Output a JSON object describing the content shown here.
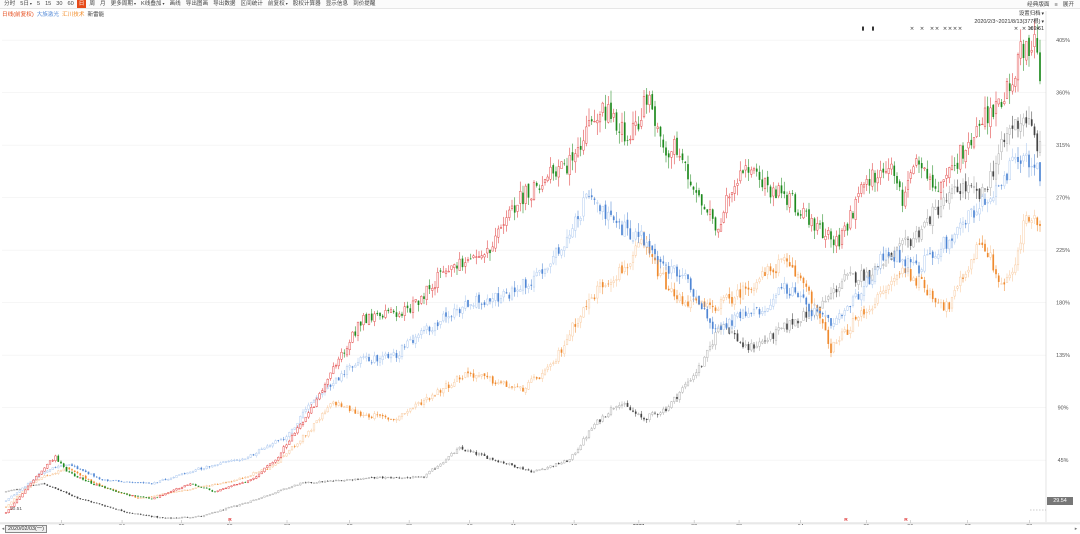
{
  "toolbar": {
    "items": [
      {
        "label": "分时",
        "active": false,
        "caret": false
      },
      {
        "label": "5日",
        "active": false,
        "caret": true
      },
      {
        "label": "5",
        "active": false,
        "caret": false
      },
      {
        "label": "15",
        "active": false,
        "caret": false
      },
      {
        "label": "30",
        "active": false,
        "caret": false
      },
      {
        "label": "60",
        "active": false,
        "caret": false
      },
      {
        "label": "日",
        "active": true,
        "caret": false
      },
      {
        "label": "周",
        "active": false,
        "caret": false
      },
      {
        "label": "月",
        "active": false,
        "caret": false
      },
      {
        "label": "更多周期",
        "active": false,
        "caret": true
      },
      {
        "label": "K线叠加",
        "active": false,
        "caret": true
      },
      {
        "label": "画线",
        "active": false,
        "caret": false
      },
      {
        "label": "导出图画",
        "active": false,
        "caret": false
      },
      {
        "label": "导出数据",
        "active": false,
        "caret": false
      },
      {
        "label": "区间统计",
        "active": false,
        "caret": false
      },
      {
        "label": "前复权",
        "active": false,
        "caret": true
      },
      {
        "label": "股权计算器",
        "active": false,
        "caret": false
      },
      {
        "label": "显示信息",
        "active": false,
        "caret": false
      },
      {
        "label": "到价提醒",
        "active": false,
        "caret": false
      }
    ],
    "right": [
      {
        "label": "经典版面",
        "caret": false
      },
      {
        "label": "展开",
        "caret": false
      }
    ],
    "right_prefix": "≡"
  },
  "legend": [
    {
      "label": "日线(前复权)",
      "color": "#e64a19"
    },
    {
      "label": "大族激光",
      "color": "#5b8fd9"
    },
    {
      "label": "汇川技术",
      "color": "#f28c28"
    },
    {
      "label": "新雷能",
      "color": "#444444"
    }
  ],
  "range_box": {
    "line1": "设置归档",
    "line2": "2020/2/3~2021/8/13(377根)",
    "line3": "169.61"
  },
  "price_box": "29.54",
  "date_box": "2020/02/03(一)",
  "scroll_left": "◂",
  "scroll_right": "▸",
  "markers": {
    "top": "×",
    "small": "▮",
    "event": "R"
  },
  "chart_data": {
    "type": "candlestick-overlay",
    "x_start": "2020-02-03",
    "x_end": "2021-08-13",
    "bars": 377,
    "y_unit": "%",
    "yticks": [
      45,
      90,
      135,
      180,
      225,
      270,
      315,
      360,
      405
    ],
    "ytick_labels": [
      "45%",
      "90%",
      "135%",
      "180%",
      "225%",
      "270%",
      "315%",
      "360%",
      "405%"
    ],
    "ylim": [
      -8,
      430
    ],
    "xticks": [
      {
        "label": "03",
        "pos": 0.057
      },
      {
        "label": "04",
        "pos": 0.115
      },
      {
        "label": "05",
        "pos": 0.172
      },
      {
        "label": "06",
        "pos": 0.218
      },
      {
        "label": "07",
        "pos": 0.273
      },
      {
        "label": "08",
        "pos": 0.333
      },
      {
        "label": "09",
        "pos": 0.39
      },
      {
        "label": "10",
        "pos": 0.448
      },
      {
        "label": "11",
        "pos": 0.49
      },
      {
        "label": "12",
        "pos": 0.548
      },
      {
        "label": "2021",
        "pos": 0.61
      },
      {
        "label": "02",
        "pos": 0.663
      },
      {
        "label": "03",
        "pos": 0.706
      },
      {
        "label": "04",
        "pos": 0.765
      },
      {
        "label": "05",
        "pos": 0.828
      },
      {
        "label": "06",
        "pos": 0.87
      },
      {
        "label": "07",
        "pos": 0.925
      },
      {
        "label": "08",
        "pos": 0.984
      }
    ],
    "series": [
      {
        "name": "日线(前复权)",
        "style": "candles",
        "up_color": "#e03a3a",
        "down_color": "#1e8a1e",
        "anchors": [
          [
            0,
            0
          ],
          [
            12,
            30
          ],
          [
            20,
            48
          ],
          [
            25,
            35
          ],
          [
            35,
            25
          ],
          [
            50,
            15
          ],
          [
            60,
            12
          ],
          [
            75,
            25
          ],
          [
            85,
            18
          ],
          [
            100,
            28
          ],
          [
            110,
            45
          ],
          [
            125,
            90
          ],
          [
            145,
            165
          ],
          [
            165,
            175
          ],
          [
            180,
            210
          ],
          [
            195,
            220
          ],
          [
            210,
            270
          ],
          [
            230,
            300
          ],
          [
            238,
            330
          ],
          [
            245,
            345
          ],
          [
            255,
            320
          ],
          [
            262,
            360
          ],
          [
            268,
            315
          ],
          [
            275,
            310
          ],
          [
            285,
            260
          ],
          [
            290,
            245
          ],
          [
            300,
            295
          ],
          [
            310,
            280
          ],
          [
            320,
            270
          ],
          [
            330,
            245
          ],
          [
            340,
            230
          ],
          [
            350,
            280
          ],
          [
            360,
            300
          ],
          [
            366,
            265
          ],
          [
            372,
            300
          ],
          [
            382,
            275
          ],
          [
            390,
            310
          ],
          [
            400,
            340
          ],
          [
            408,
            360
          ],
          [
            415,
            400
          ],
          [
            420,
            405
          ],
          [
            422,
            360
          ]
        ]
      },
      {
        "name": "大族激光",
        "style": "candles",
        "up_color": "#a9c6ee",
        "down_color": "#4f86d4",
        "anchors": [
          [
            0,
            10
          ],
          [
            15,
            35
          ],
          [
            25,
            42
          ],
          [
            40,
            28
          ],
          [
            60,
            25
          ],
          [
            80,
            38
          ],
          [
            100,
            48
          ],
          [
            115,
            65
          ],
          [
            130,
            105
          ],
          [
            145,
            130
          ],
          [
            160,
            135
          ],
          [
            175,
            160
          ],
          [
            190,
            180
          ],
          [
            205,
            185
          ],
          [
            220,
            205
          ],
          [
            235,
            250
          ],
          [
            240,
            280
          ],
          [
            248,
            250
          ],
          [
            262,
            235
          ],
          [
            268,
            215
          ],
          [
            280,
            200
          ],
          [
            292,
            155
          ],
          [
            302,
            170
          ],
          [
            312,
            175
          ],
          [
            320,
            195
          ],
          [
            330,
            175
          ],
          [
            340,
            160
          ],
          [
            352,
            190
          ],
          [
            362,
            225
          ],
          [
            375,
            210
          ],
          [
            388,
            235
          ],
          [
            398,
            260
          ],
          [
            408,
            275
          ],
          [
            414,
            300
          ],
          [
            420,
            305
          ],
          [
            425,
            290
          ]
        ]
      },
      {
        "name": "汇川技术",
        "style": "candles",
        "up_color": "#f8c79a",
        "down_color": "#ef8a2e",
        "anchors": [
          [
            0,
            5
          ],
          [
            12,
            28
          ],
          [
            25,
            38
          ],
          [
            40,
            22
          ],
          [
            55,
            12
          ],
          [
            70,
            18
          ],
          [
            95,
            28
          ],
          [
            110,
            40
          ],
          [
            125,
            70
          ],
          [
            135,
            95
          ],
          [
            145,
            85
          ],
          [
            160,
            80
          ],
          [
            175,
            100
          ],
          [
            190,
            120
          ],
          [
            205,
            110
          ],
          [
            212,
            105
          ],
          [
            225,
            125
          ],
          [
            235,
            165
          ],
          [
            245,
            195
          ],
          [
            255,
            210
          ],
          [
            262,
            230
          ],
          [
            268,
            210
          ],
          [
            275,
            185
          ],
          [
            290,
            175
          ],
          [
            300,
            185
          ],
          [
            310,
            200
          ],
          [
            320,
            215
          ],
          [
            330,
            195
          ],
          [
            340,
            140
          ],
          [
            350,
            165
          ],
          [
            360,
            185
          ],
          [
            370,
            210
          ],
          [
            380,
            190
          ],
          [
            388,
            175
          ],
          [
            395,
            205
          ],
          [
            402,
            235
          ],
          [
            410,
            195
          ],
          [
            416,
            210
          ],
          [
            420,
            255
          ],
          [
            426,
            245
          ]
        ]
      },
      {
        "name": "新雷能",
        "style": "candles",
        "up_color": "#aaaaaa",
        "down_color": "#444444",
        "anchors": [
          [
            0,
            18
          ],
          [
            15,
            25
          ],
          [
            30,
            12
          ],
          [
            50,
            0
          ],
          [
            65,
            -5
          ],
          [
            80,
            -3
          ],
          [
            100,
            10
          ],
          [
            120,
            25
          ],
          [
            150,
            30
          ],
          [
            170,
            30
          ],
          [
            185,
            55
          ],
          [
            200,
            45
          ],
          [
            215,
            35
          ],
          [
            230,
            45
          ],
          [
            240,
            75
          ],
          [
            250,
            95
          ],
          [
            260,
            80
          ],
          [
            270,
            90
          ],
          [
            285,
            130
          ],
          [
            292,
            165
          ],
          [
            302,
            140
          ],
          [
            312,
            150
          ],
          [
            322,
            165
          ],
          [
            332,
            175
          ],
          [
            342,
            200
          ],
          [
            352,
            205
          ],
          [
            362,
            220
          ],
          [
            370,
            235
          ],
          [
            380,
            260
          ],
          [
            390,
            280
          ],
          [
            398,
            270
          ],
          [
            404,
            300
          ],
          [
            410,
            330
          ],
          [
            416,
            340
          ],
          [
            422,
            310
          ]
        ]
      }
    ]
  }
}
